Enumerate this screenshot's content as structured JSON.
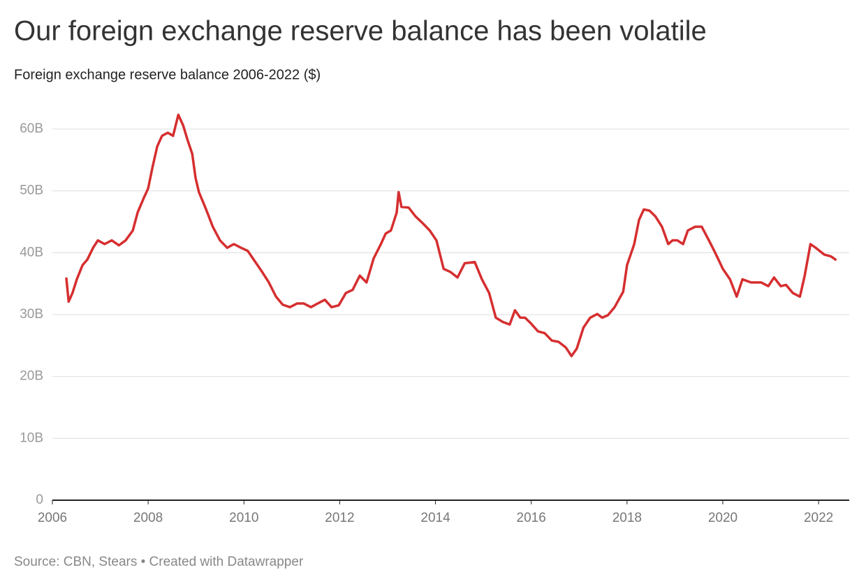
{
  "chart_data": {
    "type": "line",
    "title": "Our foreign exchange reserve balance has been volatile",
    "subtitle": "Foreign exchange reserve balance 2006-2022 ($)",
    "source": "Source: CBN, Stears • Created with Datawrapper",
    "x": [
      2006.29,
      2006.34,
      2006.42,
      2006.51,
      2006.63,
      2006.73,
      2006.85,
      2006.95,
      2007.09,
      2007.24,
      2007.39,
      2007.53,
      2007.68,
      2007.78,
      2007.9,
      2008.0,
      2008.09,
      2008.19,
      2008.29,
      2008.41,
      2008.52,
      2008.63,
      2008.73,
      2008.82,
      2008.92,
      2008.99,
      2009.06,
      2009.21,
      2009.35,
      2009.5,
      2009.65,
      2009.79,
      2009.94,
      2010.08,
      2010.23,
      2010.38,
      2010.52,
      2010.67,
      2010.81,
      2010.96,
      2011.11,
      2011.25,
      2011.4,
      2011.54,
      2011.69,
      2011.83,
      2011.98,
      2012.13,
      2012.27,
      2012.42,
      2012.56,
      2012.71,
      2012.86,
      2012.96,
      2013.07,
      2013.19,
      2013.23,
      2013.29,
      2013.44,
      2013.58,
      2013.73,
      2013.88,
      2014.02,
      2014.17,
      2014.31,
      2014.46,
      2014.61,
      2014.82,
      2014.97,
      2015.12,
      2015.26,
      2015.41,
      2015.55,
      2015.66,
      2015.77,
      2015.87,
      2015.99,
      2016.14,
      2016.28,
      2016.43,
      2016.57,
      2016.72,
      2016.84,
      2016.95,
      2017.09,
      2017.23,
      2017.38,
      2017.48,
      2017.6,
      2017.74,
      2017.92,
      2018.0,
      2018.15,
      2018.25,
      2018.35,
      2018.47,
      2018.59,
      2018.73,
      2018.86,
      2018.95,
      2019.05,
      2019.17,
      2019.27,
      2019.42,
      2019.56,
      2019.71,
      2019.86,
      2020.0,
      2020.15,
      2020.29,
      2020.41,
      2020.59,
      2020.8,
      2020.95,
      2021.07,
      2021.21,
      2021.32,
      2021.46,
      2021.61,
      2021.71,
      2021.83,
      2021.94,
      2022.12,
      2022.26,
      2022.37
    ],
    "series": [
      {
        "name": "Foreign exchange reserve balance",
        "color": "#d62e2f",
        "values": [
          36000000000.0,
          32100000000.0,
          33500000000.0,
          35700000000.0,
          38000000000.0,
          38900000000.0,
          40800000000.0,
          42000000000.0,
          41400000000.0,
          42000000000.0,
          41200000000.0,
          42000000000.0,
          43600000000.0,
          46500000000.0,
          48700000000.0,
          50400000000.0,
          53800000000.0,
          57200000000.0,
          58900000000.0,
          59400000000.0,
          58900000000.0,
          62300000000.0,
          60600000000.0,
          58300000000.0,
          56000000000.0,
          52100000000.0,
          49800000000.0,
          47000000000.0,
          44200000000.0,
          42000000000.0,
          40800000000.0,
          41400000000.0,
          40800000000.0,
          40300000000.0,
          38600000000.0,
          36900000000.0,
          35200000000.0,
          32900000000.0,
          31600000000.0,
          31200000000.0,
          31800000000.0,
          31800000000.0,
          31200000000.0,
          31800000000.0,
          32400000000.0,
          31200000000.0,
          31500000000.0,
          33500000000.0,
          34000000000.0,
          36300000000.0,
          35200000000.0,
          39100000000.0,
          41400000000.0,
          43100000000.0,
          43600000000.0,
          46500000000.0,
          49800000000.0,
          47400000000.0,
          47300000000.0,
          45900000000.0,
          44800000000.0,
          43600000000.0,
          42000000000.0,
          37400000000.0,
          36900000000.0,
          36000000000.0,
          38300000000.0,
          38500000000.0,
          35700000000.0,
          33500000000.0,
          29500000000.0,
          28800000000.0,
          28400000000.0,
          30700000000.0,
          29500000000.0,
          29500000000.0,
          28600000000.0,
          27300000000.0,
          27000000000.0,
          25800000000.0,
          25600000000.0,
          24700000000.0,
          23300000000.0,
          24500000000.0,
          27900000000.0,
          29500000000.0,
          30100000000.0,
          29500000000.0,
          29900000000.0,
          31200000000.0,
          33700000000.0,
          38000000000.0,
          41400000000.0,
          45300000000.0,
          47000000000.0,
          46800000000.0,
          45900000000.0,
          44200000000.0,
          41400000000.0,
          42000000000.0,
          42000000000.0,
          41400000000.0,
          43600000000.0,
          44200000000.0,
          44200000000.0,
          42000000000.0,
          39700000000.0,
          37400000000.0,
          35700000000.0,
          32900000000.0,
          35700000000.0,
          35200000000.0,
          35200000000.0,
          34600000000.0,
          36000000000.0,
          34600000000.0,
          34800000000.0,
          33500000000.0,
          32900000000.0,
          36300000000.0,
          41400000000.0,
          40800000000.0,
          39700000000.0,
          39400000000.0,
          38800000000.0
        ]
      }
    ],
    "xlim": [
      2006,
      2022.64
    ],
    "xticks": [
      2006,
      2008,
      2010,
      2012,
      2014,
      2016,
      2018,
      2020,
      2022
    ],
    "ylim": [
      0,
      65000000000.0
    ],
    "yticks": [
      0,
      {
        "value": 10000000000.0,
        "label": "10B"
      },
      {
        "value": 20000000000.0,
        "label": "20B"
      },
      {
        "value": 30000000000.0,
        "label": "30B"
      },
      {
        "value": 40000000000.0,
        "label": "40B"
      },
      {
        "value": 50000000000.0,
        "label": "50B"
      },
      {
        "value": 60000000000.0,
        "label": "60B"
      }
    ],
    "grid": true
  }
}
